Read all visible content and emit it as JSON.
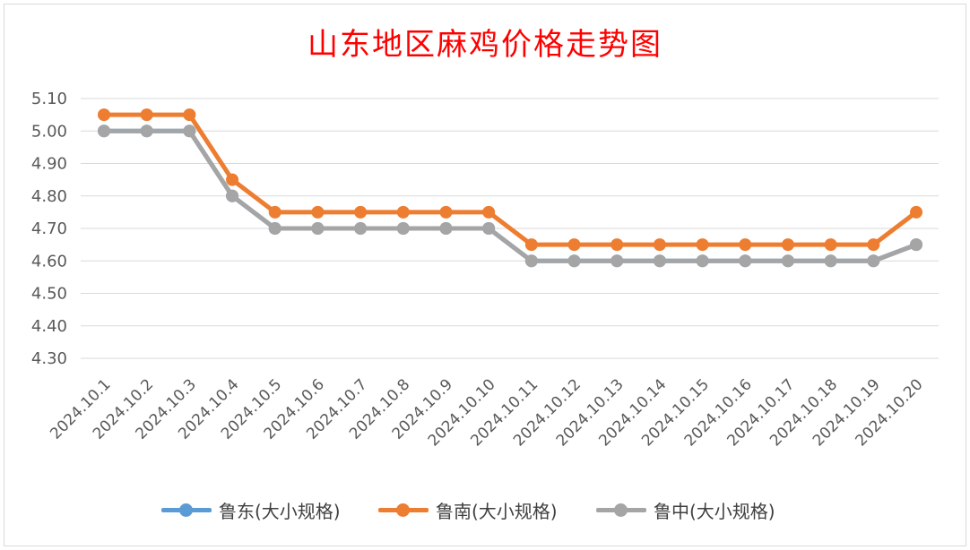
{
  "chart_data": {
    "type": "line",
    "title": "山东地区麻鸡价格走势图",
    "categories": [
      "2024.10.1",
      "2024.10.2",
      "2024.10.3",
      "2024.10.4",
      "2024.10.5",
      "2024.10.6",
      "2024.10.7",
      "2024.10.8",
      "2024.10.9",
      "2024.10.10",
      "2024.10.11",
      "2024.10.12",
      "2024.10.13",
      "2024.10.14",
      "2024.10.15",
      "2024.10.16",
      "2024.10.17",
      "2024.10.18",
      "2024.10.19",
      "2024.10.20"
    ],
    "ylim": [
      4.3,
      5.1
    ],
    "yticks": [
      "5.10",
      "5.00",
      "4.90",
      "4.80",
      "4.70",
      "4.60",
      "4.50",
      "4.40",
      "4.30"
    ],
    "grid": "horizontal",
    "legend_position": "bottom",
    "series": [
      {
        "name": "鲁东(大小规格)",
        "color": "#5b9bd5",
        "values": [
          5.0,
          5.0,
          5.0,
          4.8,
          4.7,
          4.7,
          4.7,
          4.7,
          4.7,
          4.7,
          4.6,
          4.6,
          4.6,
          4.6,
          4.6,
          4.6,
          4.6,
          4.6,
          4.6,
          4.65
        ]
      },
      {
        "name": "鲁南(大小规格)",
        "color": "#ed7d31",
        "values": [
          5.05,
          5.05,
          5.05,
          4.85,
          4.75,
          4.75,
          4.75,
          4.75,
          4.75,
          4.75,
          4.65,
          4.65,
          4.65,
          4.65,
          4.65,
          4.65,
          4.65,
          4.65,
          4.65,
          4.75
        ]
      },
      {
        "name": "鲁中(大小规格)",
        "color": "#a5a5a5",
        "values": [
          5.0,
          5.0,
          5.0,
          4.8,
          4.7,
          4.7,
          4.7,
          4.7,
          4.7,
          4.7,
          4.6,
          4.6,
          4.6,
          4.6,
          4.6,
          4.6,
          4.6,
          4.6,
          4.6,
          4.65
        ]
      }
    ]
  }
}
